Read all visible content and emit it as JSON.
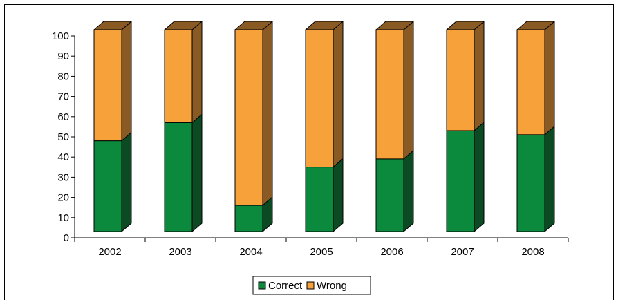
{
  "chart_data": {
    "type": "bar",
    "stacked": true,
    "style": "3d-column",
    "categories": [
      "2002",
      "2003",
      "2004",
      "2005",
      "2006",
      "2007",
      "2008"
    ],
    "series": [
      {
        "name": "Correct",
        "values": [
          45,
          54,
          13,
          32,
          36,
          50,
          48
        ],
        "color": "#0b8a3e",
        "side_color": "#0b4a22"
      },
      {
        "name": "Wrong",
        "values": [
          55,
          46,
          87,
          68,
          64,
          50,
          52
        ],
        "color": "#f7a13b",
        "side_color": "#8a5a24"
      }
    ],
    "title": "",
    "xlabel": "",
    "ylabel": "",
    "ylim": [
      0,
      100
    ],
    "yticks": [
      0,
      10,
      20,
      30,
      40,
      50,
      60,
      70,
      80,
      90,
      100
    ],
    "grid": false,
    "legend_position": "bottom"
  }
}
